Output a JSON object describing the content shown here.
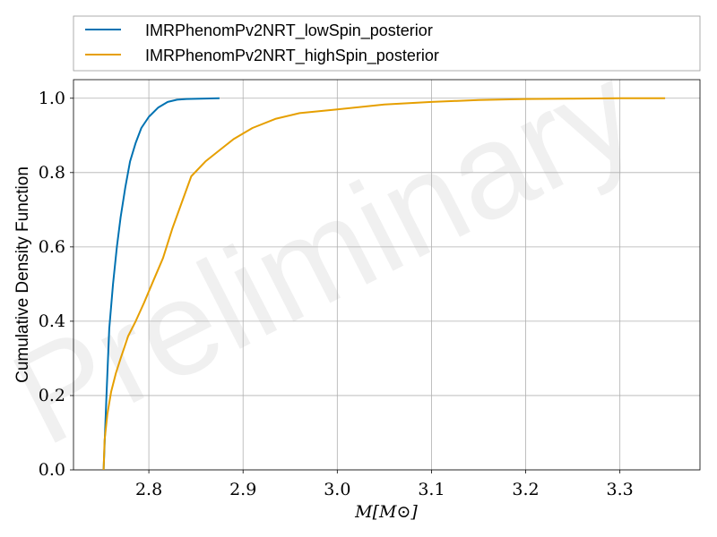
{
  "chart_data": {
    "type": "line",
    "xlabel": "M[M⊙]",
    "ylabel": "Cumulative Density Function",
    "xlim": [
      2.72,
      3.385
    ],
    "ylim": [
      0.0,
      1.05
    ],
    "x_ticks": [
      2.8,
      2.9,
      3.0,
      3.1,
      3.2,
      3.3
    ],
    "x_tick_labels": [
      "2.8",
      "2.9",
      "3.0",
      "3.1",
      "3.2",
      "3.3"
    ],
    "y_ticks": [
      0.0,
      0.2,
      0.4,
      0.6,
      0.8,
      1.0
    ],
    "y_tick_labels": [
      "0.0",
      "0.2",
      "0.4",
      "0.6",
      "0.8",
      "1.0"
    ],
    "grid": true,
    "legend_position": "top (above plot)",
    "watermark": "Preliminary",
    "series": [
      {
        "name": "IMRPhenomPv2NRT_lowSpin_posterior",
        "color": "#0072b2",
        "x": [
          2.752,
          2.755,
          2.758,
          2.762,
          2.766,
          2.77,
          2.775,
          2.78,
          2.786,
          2.792,
          2.8,
          2.81,
          2.82,
          2.83,
          2.84,
          2.855,
          2.875
        ],
        "y": [
          0.0,
          0.2,
          0.38,
          0.5,
          0.6,
          0.68,
          0.76,
          0.83,
          0.88,
          0.92,
          0.95,
          0.975,
          0.99,
          0.996,
          0.998,
          0.999,
          1.0
        ]
      },
      {
        "name": "IMRPhenomPv2NRT_highSpin_posterior",
        "color": "#e69f00",
        "x": [
          2.752,
          2.753,
          2.756,
          2.76,
          2.765,
          2.77,
          2.778,
          2.786,
          2.795,
          2.805,
          2.815,
          2.825,
          2.835,
          2.845,
          2.86,
          2.875,
          2.89,
          2.91,
          2.935,
          2.96,
          3.0,
          3.05,
          3.1,
          3.15,
          3.2,
          3.25,
          3.3,
          3.348
        ],
        "y": [
          0.0,
          0.08,
          0.15,
          0.21,
          0.26,
          0.3,
          0.36,
          0.4,
          0.45,
          0.51,
          0.57,
          0.65,
          0.72,
          0.79,
          0.83,
          0.86,
          0.89,
          0.92,
          0.945,
          0.96,
          0.97,
          0.983,
          0.99,
          0.995,
          0.998,
          0.999,
          1.0,
          1.0
        ]
      }
    ]
  }
}
